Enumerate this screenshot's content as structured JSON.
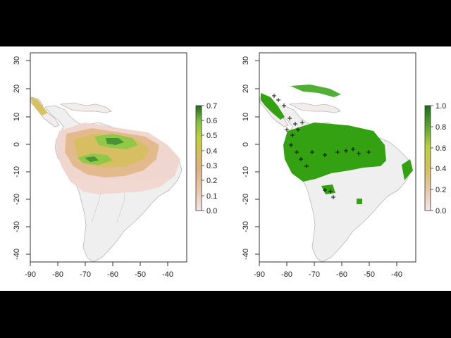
{
  "maps": [
    {
      "id": "left",
      "x_ticks": [
        "-90",
        "-80",
        "-70",
        "-60",
        "-50",
        "-40"
      ],
      "y_ticks": [
        "30",
        "20",
        "10",
        "0",
        "-10",
        "-20",
        "-30",
        "-40"
      ],
      "legend_ticks": [
        "0.7",
        "0.6",
        "0.5",
        "0.4",
        "0.3",
        "0.2",
        "0.1",
        "0.0"
      ],
      "colors": {
        "ramp": [
          "#f2e6e6",
          "#e8c7a8",
          "#dfb07e",
          "#d7bf59",
          "#bcd23c",
          "#7fc03a",
          "#3f8f2d",
          "#1f6b1f"
        ]
      }
    },
    {
      "id": "right",
      "x_ticks": [
        "-90",
        "-80",
        "-70",
        "-60",
        "-50",
        "-40"
      ],
      "y_ticks": [
        "30",
        "20",
        "10",
        "0",
        "-10",
        "-20",
        "-30",
        "-40"
      ],
      "legend_ticks": [
        "1.0",
        "0.8",
        "0.6",
        "0.4",
        "0.2",
        "0.0"
      ],
      "colors": {
        "presence": "#33a112",
        "ramp": [
          "#f2e6e6",
          "#e8c7a8",
          "#dfb07e",
          "#d7bf59",
          "#bcd23c",
          "#7fc03a",
          "#3f8f2d",
          "#1f6b1f"
        ]
      }
    }
  ],
  "colors": {
    "land": "#efefef",
    "outline": "#b8b8b8",
    "frame": "#ffffff",
    "letterbox": "#000000",
    "points": "#111111"
  }
}
